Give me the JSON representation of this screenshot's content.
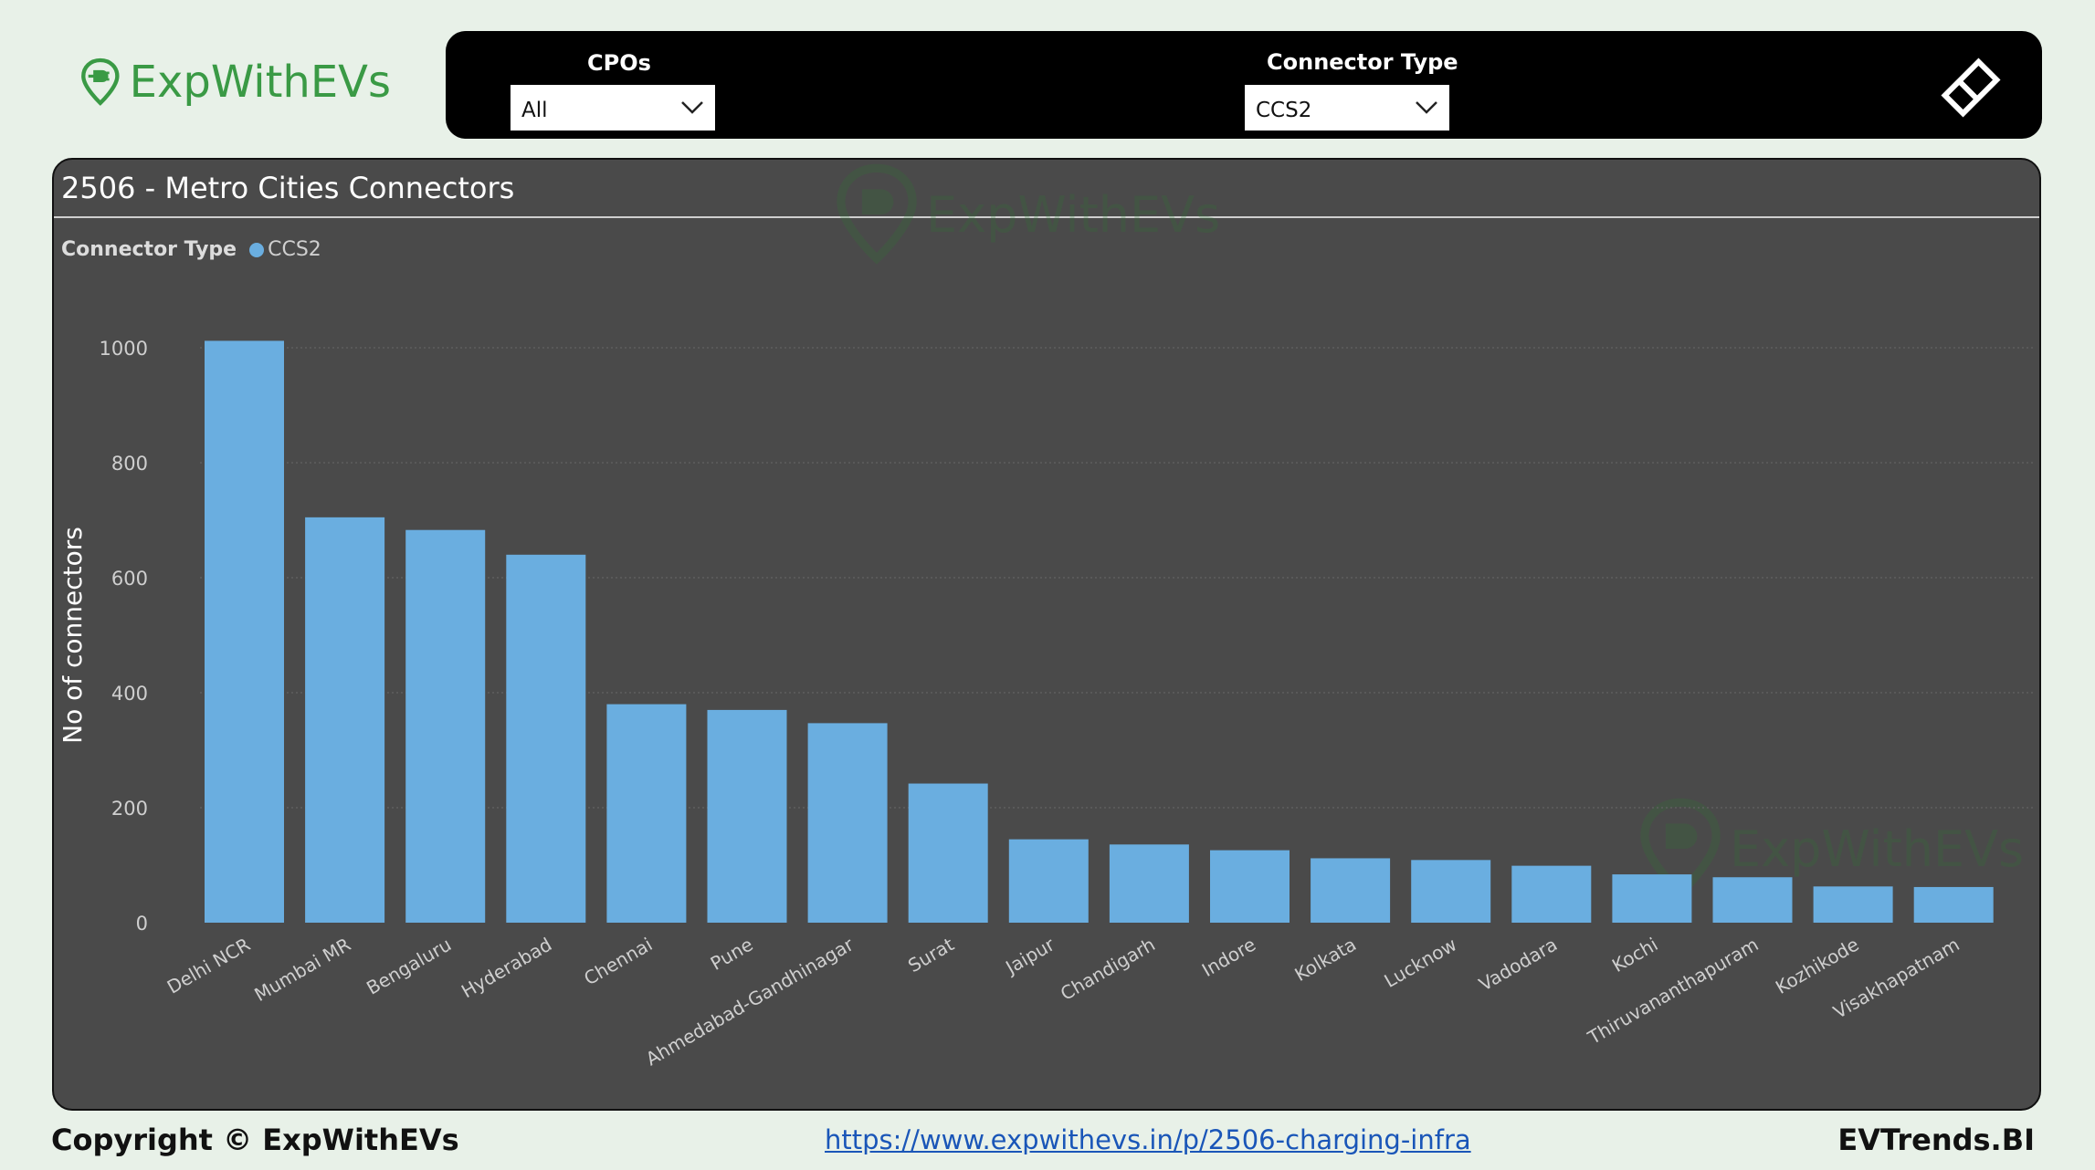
{
  "brand": {
    "logo_text": "ExpWithEVs",
    "logo_color": "#3a9a45"
  },
  "filters": {
    "cpo": {
      "label": "CPOs",
      "value": "All"
    },
    "connector": {
      "label": "Connector Type",
      "value": "CCS2"
    },
    "clear_icon": "eraser-icon"
  },
  "panel": {
    "title": "2506 - Metro Cities Connectors",
    "watermark_text": "ExpWithEVs"
  },
  "chart_data": {
    "type": "bar",
    "title": "2506 - Metro Cities Connectors",
    "legend_title": "Connector Type",
    "legend_position": "top-left",
    "xlabel": "",
    "ylabel": "No of connectors",
    "ylim": [
      0,
      1000
    ],
    "yticks": [
      0,
      200,
      400,
      600,
      800,
      1000
    ],
    "grid": true,
    "categories": [
      "Delhi NCR",
      "Mumbai MR",
      "Bengaluru",
      "Hyderabad",
      "Chennai",
      "Pune",
      "Ahmedabad-Gandhinagar",
      "Surat",
      "Jaipur",
      "Chandigarh",
      "Indore",
      "Kolkata",
      "Lucknow",
      "Vadodara",
      "Kochi",
      "Thiruvananthapuram",
      "Kozhikode",
      "Visakhapatnam"
    ],
    "series": [
      {
        "name": "CCS2",
        "color": "#6aaee0",
        "values": [
          1012,
          705,
          683,
          640,
          380,
          370,
          347,
          242,
          145,
          136,
          126,
          112,
          109,
          99,
          84,
          79,
          63,
          62
        ]
      }
    ]
  },
  "footer": {
    "copyright": "Copyright © ExpWithEVs",
    "link": "https://www.expwithevs.in/p/2506-charging-infra",
    "brand": "EVTrends.BI"
  }
}
